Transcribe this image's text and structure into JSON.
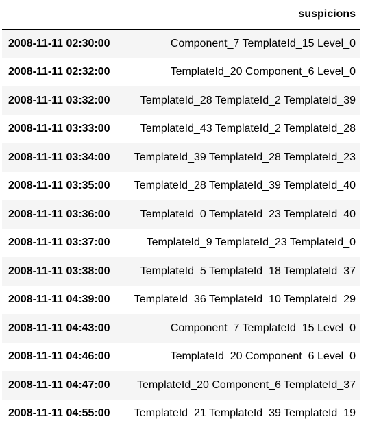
{
  "table": {
    "index_header": "",
    "column_header": "suspicions",
    "rows": [
      {
        "index": "2008-11-11 02:30:00",
        "value": "Component_7 TemplateId_15 Level_0"
      },
      {
        "index": "2008-11-11 02:32:00",
        "value": "TemplateId_20 Component_6 Level_0"
      },
      {
        "index": "2008-11-11 03:32:00",
        "value": "TemplateId_28 TemplateId_2 TemplateId_39"
      },
      {
        "index": "2008-11-11 03:33:00",
        "value": "TemplateId_43 TemplateId_2 TemplateId_28"
      },
      {
        "index": "2008-11-11 03:34:00",
        "value": "TemplateId_39 TemplateId_28 TemplateId_23"
      },
      {
        "index": "2008-11-11 03:35:00",
        "value": "TemplateId_28 TemplateId_39 TemplateId_40"
      },
      {
        "index": "2008-11-11 03:36:00",
        "value": "TemplateId_0 TemplateId_23 TemplateId_40"
      },
      {
        "index": "2008-11-11 03:37:00",
        "value": "TemplateId_9 TemplateId_23 TemplateId_0"
      },
      {
        "index": "2008-11-11 03:38:00",
        "value": "TemplateId_5 TemplateId_18 TemplateId_37"
      },
      {
        "index": "2008-11-11 04:39:00",
        "value": "TemplateId_36 TemplateId_10 TemplateId_29"
      },
      {
        "index": "2008-11-11 04:43:00",
        "value": "Component_7 TemplateId_15 Level_0"
      },
      {
        "index": "2008-11-11 04:46:00",
        "value": "TemplateId_20 Component_6 Level_0"
      },
      {
        "index": "2008-11-11 04:47:00",
        "value": "TemplateId_20 Component_6 TemplateId_37"
      },
      {
        "index": "2008-11-11 04:55:00",
        "value": "TemplateId_21 TemplateId_39 TemplateId_19"
      }
    ]
  }
}
